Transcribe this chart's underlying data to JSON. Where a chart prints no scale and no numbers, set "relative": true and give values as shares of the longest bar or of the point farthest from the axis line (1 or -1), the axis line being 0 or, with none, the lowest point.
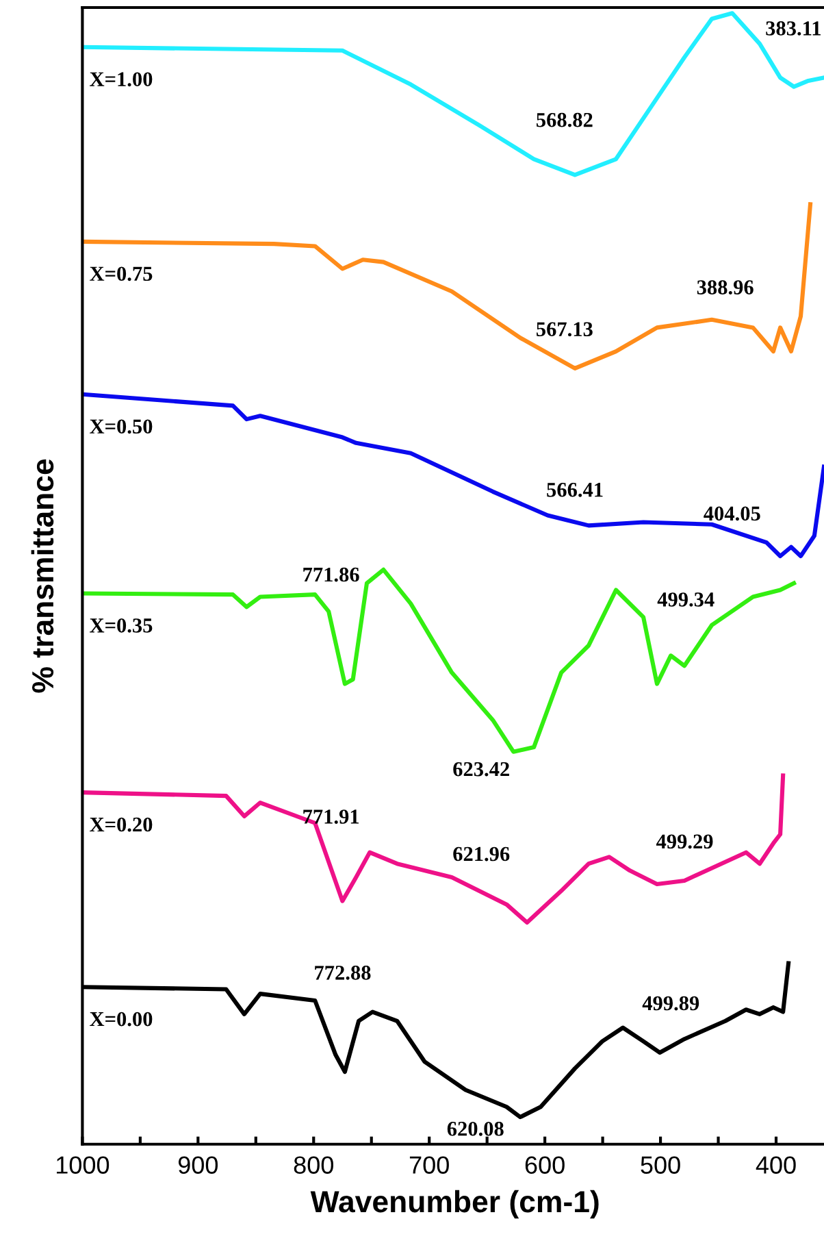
{
  "chart_data": {
    "type": "line",
    "relative": true,
    "xlabel": "Wavenumber (cm-1)",
    "ylabel": "% transmittance",
    "xlim": [
      1000,
      355
    ],
    "xticks": [
      1000,
      {
        "value": 950,
        "label": null
      },
      900,
      {
        "value": 850,
        "label": null
      },
      800,
      {
        "value": 750,
        "label": null
      },
      700,
      {
        "value": 650,
        "label": null
      },
      600,
      {
        "value": 550,
        "label": null
      },
      500,
      {
        "value": 450,
        "label": null
      },
      400
    ],
    "grid": false,
    "marker": "none",
    "line_style": "solid",
    "series": [
      {
        "name": "X=1.00",
        "color": "#22eeff",
        "x": [
          1000,
          775.1,
          716,
          656.8,
          609.5,
          574,
          538.5,
          503,
          479.3,
          455.6,
          437.9,
          414.2,
          396.4,
          384.6,
          372.8,
          358.6
        ],
        "values": [
          0.97,
          0.967,
          0.937,
          0.901,
          0.871,
          0.857,
          0.871,
          0.925,
          0.961,
          0.995,
          1.0,
          0.973,
          0.943,
          0.935,
          0.94,
          0.943
        ]
      },
      {
        "name": "X=0.75",
        "color": "#ff8c1a",
        "x": [
          1000,
          834.3,
          798.8,
          775.1,
          757.4,
          739.6,
          680.5,
          621.3,
          574,
          538.5,
          503,
          455.6,
          420,
          402.4,
          396.4,
          387,
          378.7,
          370.4
        ],
        "values": [
          0.798,
          0.796,
          0.794,
          0.774,
          0.782,
          0.78,
          0.754,
          0.713,
          0.686,
          0.701,
          0.722,
          0.729,
          0.722,
          0.701,
          0.722,
          0.701,
          0.732,
          0.831
        ]
      },
      {
        "name": "X=0.50",
        "color": "#0a0aee",
        "x": [
          1000,
          869.8,
          858,
          846.2,
          775.1,
          763.3,
          716,
          645,
          597.6,
          562.1,
          514.8,
          455.6,
          408.3,
          396.4,
          387,
          378.7,
          366.9,
          358.6
        ],
        "values": [
          0.663,
          0.653,
          0.641,
          0.644,
          0.625,
          0.62,
          0.611,
          0.577,
          0.556,
          0.547,
          0.55,
          0.548,
          0.532,
          0.52,
          0.528,
          0.52,
          0.538,
          0.599
        ]
      },
      {
        "name": "X=0.35",
        "color": "#33ee11",
        "x": [
          1000,
          869.8,
          858,
          846.2,
          798.8,
          787,
          773,
          766,
          754,
          739.6,
          716,
          680.5,
          645,
          627.2,
          609.5,
          585.8,
          562.1,
          538.5,
          514.8,
          503,
          491.1,
          479.3,
          455.6,
          420,
          396.4,
          384.6
        ],
        "values": [
          0.487,
          0.486,
          0.475,
          0.484,
          0.486,
          0.471,
          0.407,
          0.411,
          0.496,
          0.508,
          0.478,
          0.417,
          0.375,
          0.347,
          0.351,
          0.417,
          0.441,
          0.49,
          0.466,
          0.407,
          0.432,
          0.423,
          0.459,
          0.484,
          0.49,
          0.496
        ]
      },
      {
        "name": "X=0.20",
        "color": "#ee1188",
        "x": [
          1000,
          875.7,
          860,
          846.2,
          798.8,
          775.1,
          763.3,
          751.5,
          727.8,
          680.5,
          633.1,
          615.4,
          585.8,
          562.1,
          544.4,
          526.6,
          503,
          479.3,
          426,
          414.2,
          402.4,
          396.4,
          394
        ],
        "values": [
          0.311,
          0.308,
          0.29,
          0.302,
          0.284,
          0.215,
          0.236,
          0.258,
          0.248,
          0.236,
          0.212,
          0.196,
          0.224,
          0.248,
          0.254,
          0.242,
          0.23,
          0.233,
          0.258,
          0.248,
          0.266,
          0.274,
          0.326
        ]
      },
      {
        "name": "X=0.00",
        "color": "#000000",
        "x": [
          1000,
          875.7,
          860,
          846.2,
          798.8,
          781,
          773,
          761,
          749,
          727.8,
          704,
          668.6,
          633.1,
          621.3,
          603.6,
          574,
          550.3,
          532.5,
          514.8,
          500.6,
          479.3,
          443.8,
          426,
          414.2,
          402.4,
          394,
          389.3
        ],
        "values": [
          0.139,
          0.137,
          0.115,
          0.133,
          0.127,
          0.079,
          0.064,
          0.109,
          0.117,
          0.109,
          0.073,
          0.048,
          0.033,
          0.024,
          0.033,
          0.067,
          0.091,
          0.103,
          0.091,
          0.081,
          0.093,
          0.109,
          0.119,
          0.115,
          0.121,
          0.117,
          0.16
        ]
      }
    ],
    "annotations": [
      "568.82",
      "383.11",
      "567.13",
      "388.96",
      "566.41",
      "404.05",
      "771.86",
      "623.42",
      "499.34",
      "771.91",
      "621.96",
      "499.29",
      "772.88",
      "620.08",
      "499.89"
    ]
  }
}
